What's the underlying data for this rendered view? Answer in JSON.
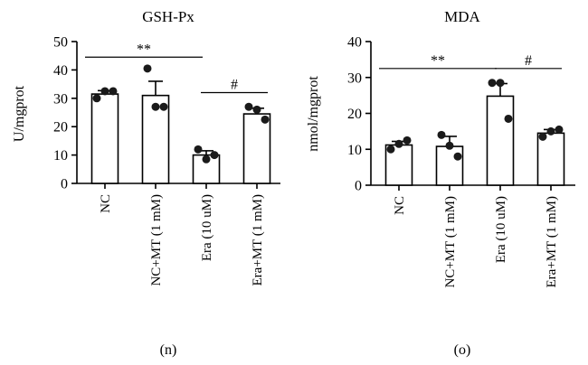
{
  "panels": [
    {
      "label": "(n)"
    },
    {
      "label": "(o)"
    }
  ],
  "chart_data": [
    {
      "type": "bar",
      "title": "GSH-Px",
      "ylabel": "U/mgprot",
      "xlabel": "",
      "categories": [
        "NC",
        "NC+MT (1 mM)",
        "Era (10 uM)",
        "Era+MT (1 mM)"
      ],
      "values": [
        31.5,
        31,
        10,
        24.5
      ],
      "errors": [
        1.2,
        5,
        1.5,
        2
      ],
      "points": [
        [
          30,
          32.5,
          32.5
        ],
        [
          40.5,
          27,
          27
        ],
        [
          12,
          8.5,
          10
        ],
        [
          27,
          26,
          22.5
        ]
      ],
      "ylim": [
        0,
        50
      ],
      "yticks": [
        0,
        10,
        20,
        30,
        40,
        50
      ],
      "annotations": [
        {
          "text": "**",
          "from": 0,
          "to": 2,
          "y": 44.5
        },
        {
          "text": "#",
          "from": 2,
          "to": 3,
          "y": 32
        }
      ],
      "grid": false,
      "legend": "none"
    },
    {
      "type": "bar",
      "title": "MDA",
      "ylabel": "nmol/mgprot",
      "xlabel": "",
      "categories": [
        "NC",
        "NC+MT (1 mM)",
        "Era (10 uM)",
        "Era+MT (1 mM)"
      ],
      "values": [
        11.2,
        10.8,
        24.8,
        14.5
      ],
      "errors": [
        1,
        2.8,
        3.5,
        1
      ],
      "points": [
        [
          10,
          11.5,
          12.5
        ],
        [
          14,
          11,
          8
        ],
        [
          28.5,
          28.5,
          18.5
        ],
        [
          13.5,
          15,
          15.5
        ]
      ],
      "ylim": [
        0,
        40
      ],
      "yticks": [
        0,
        10,
        20,
        30,
        40
      ],
      "annotations": [
        {
          "text": "**",
          "from": 0,
          "to": 2,
          "y": 32.5
        },
        {
          "text": "#",
          "from": 2,
          "to": 3,
          "y": 32.5
        }
      ],
      "grid": false,
      "legend": "none"
    }
  ]
}
